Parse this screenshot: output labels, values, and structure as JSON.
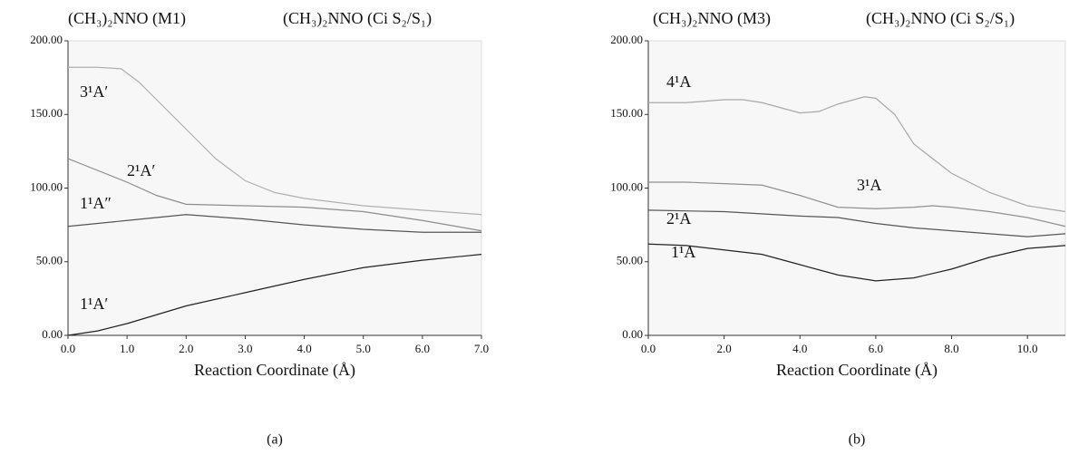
{
  "chart_data": [
    {
      "type": "line",
      "annotations": [
        "(CH₃)₂NNO (M1)",
        "(CH₃)₂NNO (Ci S₂/S₁)"
      ],
      "xlabel": "Reaction Coordinate (Å)",
      "caption": "(a)",
      "xlim": [
        0,
        7
      ],
      "ylim": [
        0,
        200
      ],
      "xticks": [
        {
          "value": 0,
          "label": "0.0"
        },
        {
          "value": 1,
          "label": "1.0"
        },
        {
          "value": 2,
          "label": "2.0"
        },
        {
          "value": 3,
          "label": "3.0"
        },
        {
          "value": 4,
          "label": "4.0"
        },
        {
          "value": 5,
          "label": "5.0"
        },
        {
          "value": 6,
          "label": "6.0"
        },
        {
          "value": 7,
          "label": "7.0"
        }
      ],
      "yticks": [
        {
          "value": 0,
          "label": "0.00"
        },
        {
          "value": 50,
          "label": "50.00"
        },
        {
          "value": 100,
          "label": "100.00"
        },
        {
          "value": 150,
          "label": "150.00"
        },
        {
          "value": 200,
          "label": "200.00"
        }
      ],
      "series": [
        {
          "name": "3¹A′",
          "color": "#b0b0b0",
          "x": [
            0,
            0.5,
            0.9,
            1.2,
            1.5,
            2,
            2.5,
            3,
            3.5,
            4,
            5,
            6,
            7
          ],
          "values": [
            182,
            182,
            181,
            172,
            160,
            140,
            120,
            105,
            97,
            93,
            88,
            85,
            82
          ]
        },
        {
          "name": "2¹A′",
          "color": "#8c8c8c",
          "x": [
            0,
            0.5,
            1,
            1.5,
            2,
            3,
            4,
            5,
            6,
            7
          ],
          "values": [
            120,
            112,
            104,
            95,
            89,
            88,
            87,
            84,
            78,
            71
          ]
        },
        {
          "name": "1¹A″",
          "color": "#555555",
          "x": [
            0,
            1,
            2,
            3,
            4,
            5,
            6,
            7
          ],
          "values": [
            74,
            78,
            82,
            79,
            75,
            72,
            70,
            70
          ]
        },
        {
          "name": "1¹A′",
          "color": "#222222",
          "x": [
            0,
            0.5,
            1,
            1.5,
            2,
            3,
            4,
            5,
            6,
            7
          ],
          "values": [
            0,
            3,
            8,
            14,
            20,
            29,
            38,
            46,
            51,
            55
          ]
        }
      ]
    },
    {
      "type": "line",
      "annotations": [
        "(CH₃)₂NNO (M3)",
        "(CH₃)₂NNO (Ci S₂/S₁)"
      ],
      "xlabel": "Reaction Coordinate (Å)",
      "caption": "(b)",
      "xlim": [
        0,
        11
      ],
      "ylim": [
        0,
        200
      ],
      "xticks": [
        {
          "value": 0,
          "label": "0.0"
        },
        {
          "value": 2,
          "label": "2.0"
        },
        {
          "value": 4,
          "label": "4.0"
        },
        {
          "value": 6,
          "label": "6.0"
        },
        {
          "value": 8,
          "label": "8.0"
        },
        {
          "value": 10,
          "label": "10.0"
        }
      ],
      "yticks": [
        {
          "value": 0,
          "label": "0.00"
        },
        {
          "value": 50,
          "label": "50.00"
        },
        {
          "value": 100,
          "label": "100.00"
        },
        {
          "value": 150,
          "label": "150.00"
        },
        {
          "value": 200,
          "label": "200.00"
        }
      ],
      "series": [
        {
          "name": "4¹A",
          "color": "#a8a8a8",
          "x": [
            0,
            1,
            2,
            2.5,
            3,
            4,
            4.5,
            5,
            5.7,
            6,
            6.5,
            7,
            8,
            9,
            10,
            11
          ],
          "values": [
            158,
            158,
            160,
            160,
            158,
            151,
            152,
            157,
            162,
            161,
            150,
            130,
            110,
            97,
            88,
            84
          ]
        },
        {
          "name": "3¹A",
          "color": "#909090",
          "x": [
            0,
            1,
            2,
            3,
            4,
            5,
            6,
            7,
            7.5,
            8,
            9,
            10,
            11
          ],
          "values": [
            104,
            104,
            103,
            102,
            95,
            87,
            86,
            87,
            88,
            87,
            84,
            80,
            74
          ]
        },
        {
          "name": "2¹A",
          "color": "#555555",
          "x": [
            0,
            2,
            4,
            5,
            6,
            7,
            8,
            9,
            10,
            11
          ],
          "values": [
            85,
            84,
            81,
            80,
            76,
            73,
            71,
            69,
            67,
            69
          ]
        },
        {
          "name": "1¹A",
          "color": "#222222",
          "x": [
            0,
            1,
            2,
            3,
            4,
            5,
            6,
            7,
            8,
            9,
            10,
            11
          ],
          "values": [
            62,
            61,
            58,
            55,
            48,
            41,
            37,
            39,
            45,
            53,
            59,
            61
          ]
        }
      ]
    }
  ]
}
